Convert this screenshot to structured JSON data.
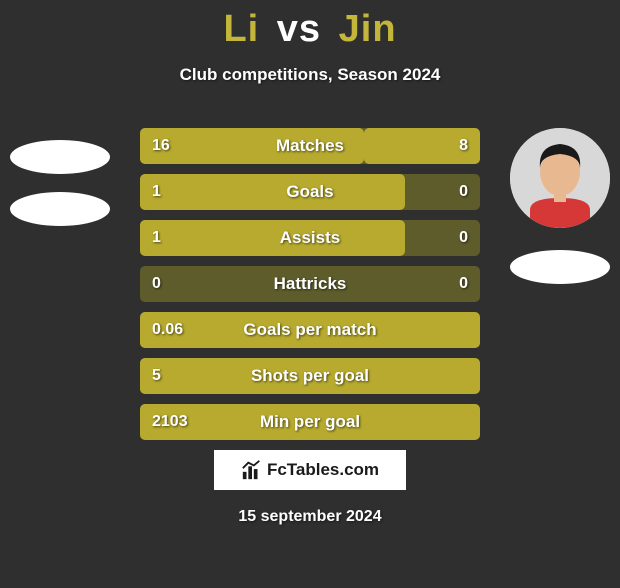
{
  "title": {
    "player1": "Li",
    "vs": "vs",
    "player2": "Jin"
  },
  "subtitle": "Club competitions, Season 2024",
  "colors": {
    "player1": "#b7aa2e",
    "player2": "#b7aa2e",
    "bar_bg": "#5e5c2b",
    "background": "#2f2f2f",
    "text": "#ffffff",
    "title_p1": "#c4b63a",
    "title_p2": "#c4b63a"
  },
  "player1": {
    "has_photo": false
  },
  "player2": {
    "has_photo": true,
    "skin": "#e8b890",
    "hair": "#1a1a1a",
    "shirt": "#d63838"
  },
  "stats": [
    {
      "label": "Matches",
      "v1": "16",
      "v2": "8",
      "w1": 66,
      "w2": 34
    },
    {
      "label": "Goals",
      "v1": "1",
      "v2": "0",
      "w1": 78,
      "w2": 0
    },
    {
      "label": "Assists",
      "v1": "1",
      "v2": "0",
      "w1": 78,
      "w2": 0
    },
    {
      "label": "Hattricks",
      "v1": "0",
      "v2": "0",
      "w1": 0,
      "w2": 0
    },
    {
      "label": "Goals per match",
      "v1": "0.06",
      "v2": "",
      "w1": 100,
      "w2": 0
    },
    {
      "label": "Shots per goal",
      "v1": "5",
      "v2": "",
      "w1": 100,
      "w2": 0
    },
    {
      "label": "Min per goal",
      "v1": "2103",
      "v2": "",
      "w1": 100,
      "w2": 0
    }
  ],
  "logo": "FcTables.com",
  "date": "15 september 2024"
}
